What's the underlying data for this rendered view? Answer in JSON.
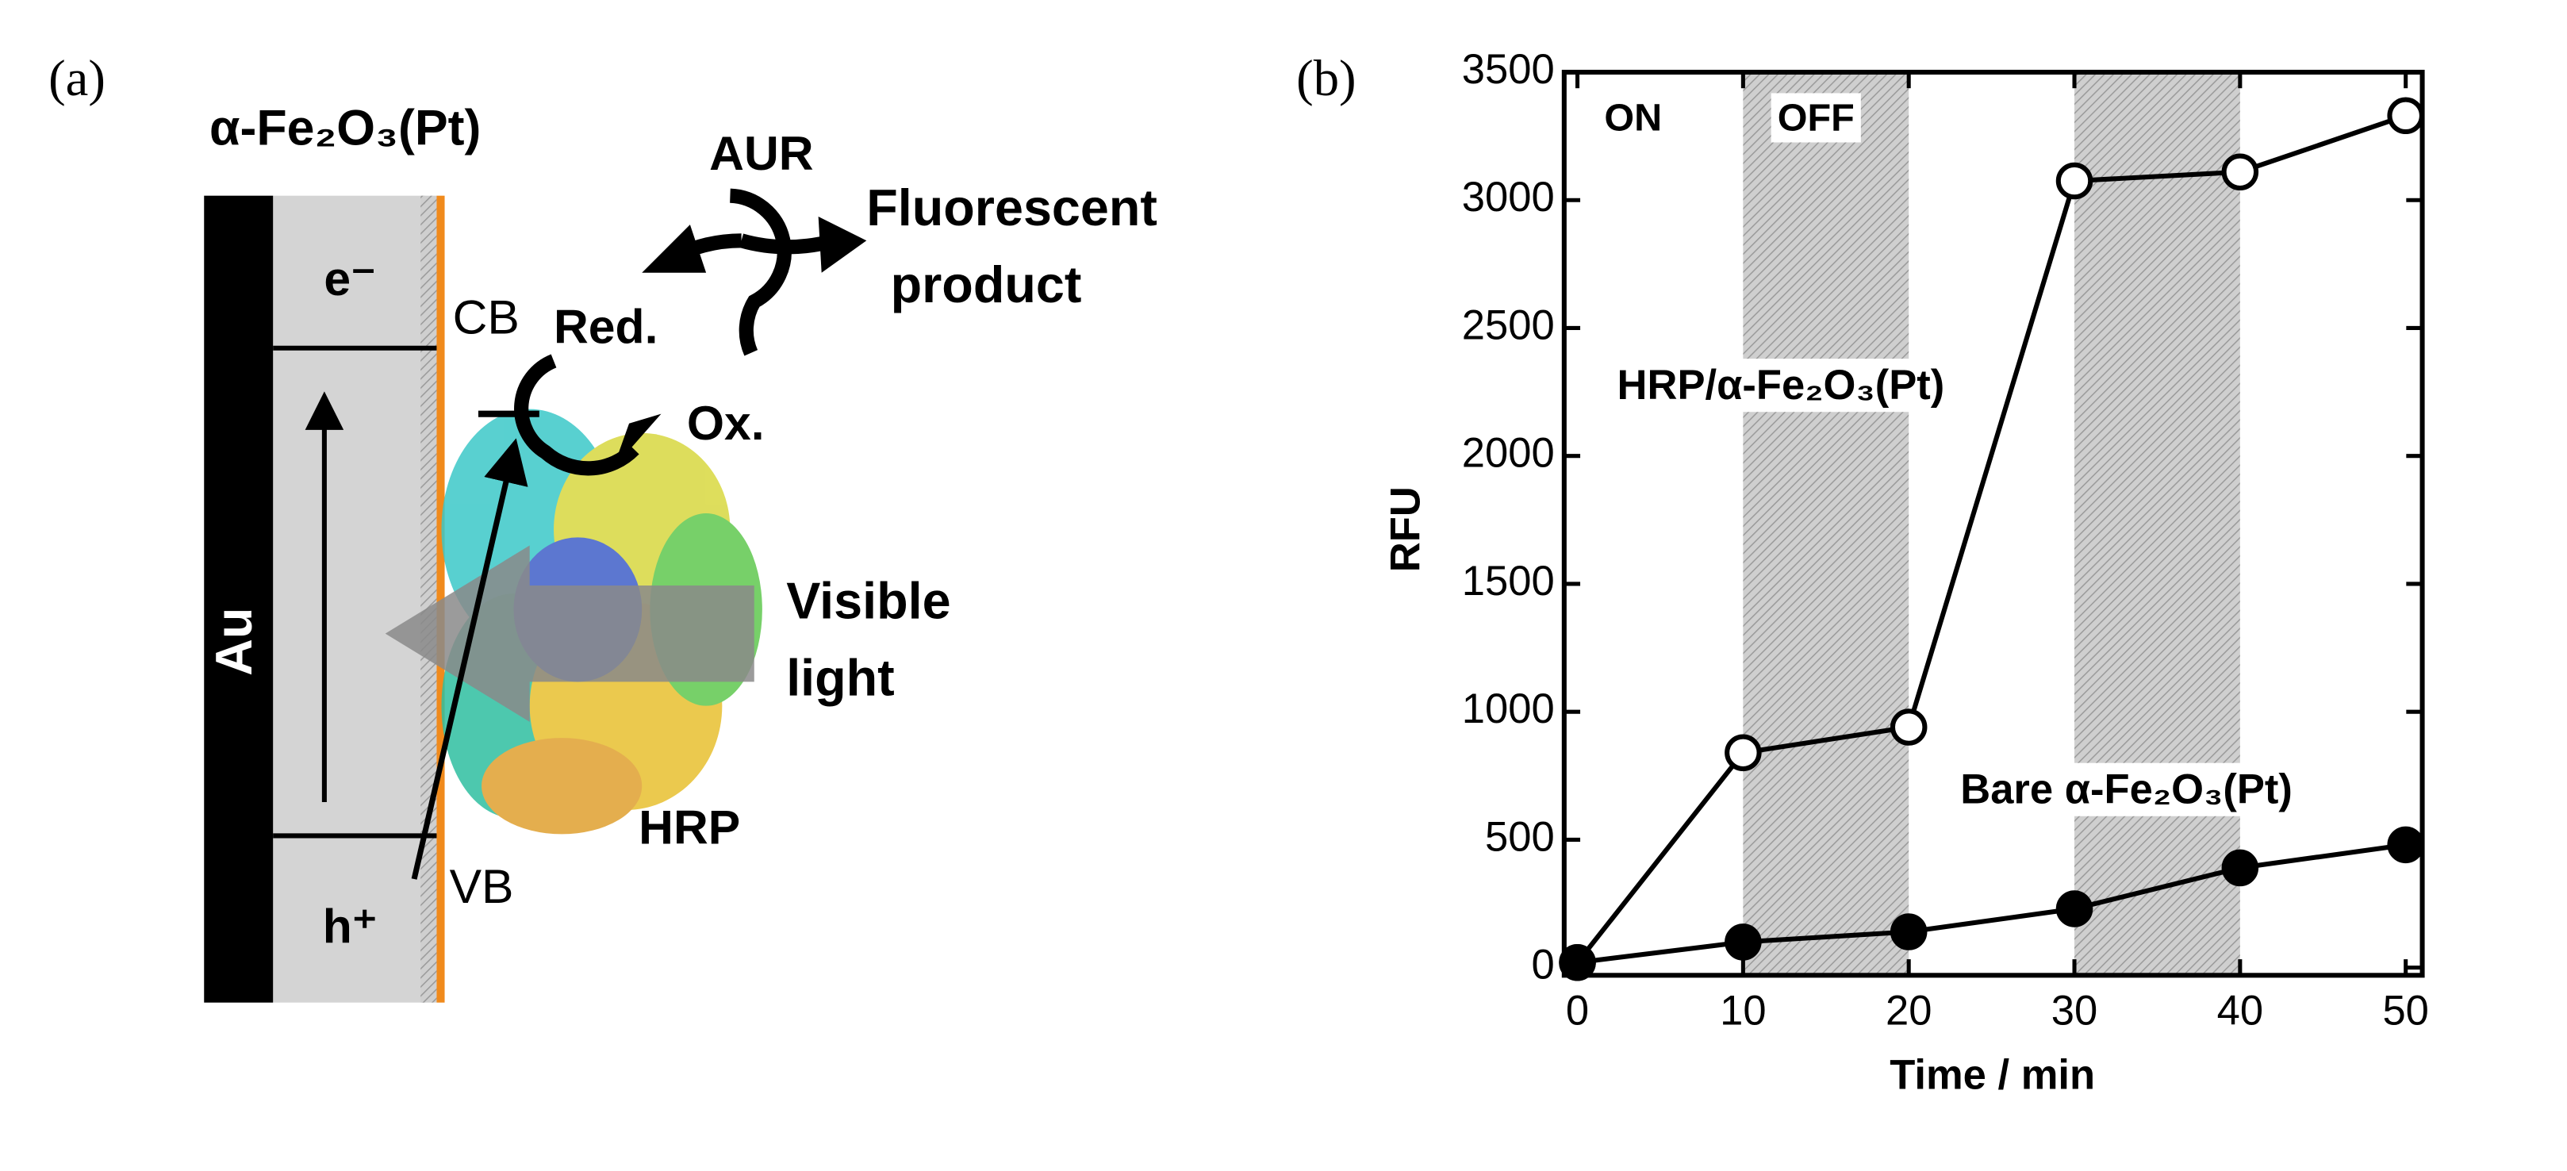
{
  "diagram": {
    "panel_label": "(a)",
    "material": "α-Fe₂O₃(Pt)",
    "electrode": "Au",
    "electron": "e⁻",
    "hole": "h⁺",
    "cb": "CB",
    "vb": "VB",
    "red": "Red.",
    "ox": "Ox.",
    "substrate": "AUR",
    "product": [
      "Fluorescent",
      "product"
    ],
    "light": [
      "Visible",
      "light"
    ],
    "enzyme": "HRP"
  },
  "chart_data": {
    "type": "line",
    "panel_label": "(b)",
    "xlabel": "Time / min",
    "ylabel": "RFU",
    "x": [
      0,
      10,
      20,
      30,
      40,
      50
    ],
    "series": [
      {
        "name": "HRP/α-Fe₂O₃(Pt)",
        "color": "#000000",
        "marker": "open",
        "values": [
          20,
          840,
          940,
          3075,
          3110,
          3330
        ]
      },
      {
        "name": "Bare α-Fe₂O₃(Pt)",
        "color": "#000000",
        "marker": "filled",
        "values": [
          20,
          100,
          140,
          230,
          390,
          480
        ]
      }
    ],
    "shaded": [
      [
        10,
        20
      ],
      [
        30,
        40
      ]
    ],
    "on_label": "ON",
    "off_label": "OFF",
    "xlim": [
      -0.8,
      51
    ],
    "ylim": [
      -30,
      3500
    ],
    "xticks": [
      0,
      10,
      20,
      30,
      40,
      50
    ],
    "yticks": [
      0,
      500,
      1000,
      1500,
      2000,
      2500,
      3000,
      3500
    ]
  }
}
